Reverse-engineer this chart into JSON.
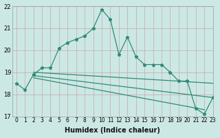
{
  "line1_x": [
    0,
    1,
    2,
    3,
    4,
    5,
    6,
    7,
    8,
    9,
    10,
    11,
    12,
    13,
    14,
    15,
    16,
    17,
    18,
    19,
    20,
    21,
    22,
    23
  ],
  "line1_y": [
    18.5,
    18.2,
    18.9,
    19.2,
    19.2,
    20.1,
    20.35,
    20.5,
    20.65,
    21.0,
    21.85,
    21.4,
    19.8,
    20.6,
    19.7,
    19.35,
    19.35,
    19.35,
    19.0,
    18.6,
    18.6,
    17.35,
    17.1,
    17.85
  ],
  "trend1_x": [
    2,
    23
  ],
  "trend1_y": [
    19.0,
    18.5
  ],
  "trend2_x": [
    2,
    23
  ],
  "trend2_y": [
    18.85,
    17.85
  ],
  "trend3_x": [
    2,
    22
  ],
  "trend3_y": [
    18.75,
    17.3
  ],
  "line_color": "#2e8b78",
  "bg_color": "#cce8e4",
  "grid_color": "#c4a8a8",
  "xlabel": "Humidex (Indice chaleur)",
  "ylim": [
    17,
    22
  ],
  "xlim": [
    -0.5,
    23
  ],
  "yticks": [
    17,
    18,
    19,
    20,
    21,
    22
  ],
  "xticks": [
    0,
    1,
    2,
    3,
    4,
    5,
    6,
    7,
    8,
    9,
    10,
    11,
    12,
    13,
    14,
    15,
    16,
    17,
    18,
    19,
    20,
    21,
    22,
    23
  ],
  "xlabel_fontsize": 7,
  "tick_fontsize": 5.5
}
